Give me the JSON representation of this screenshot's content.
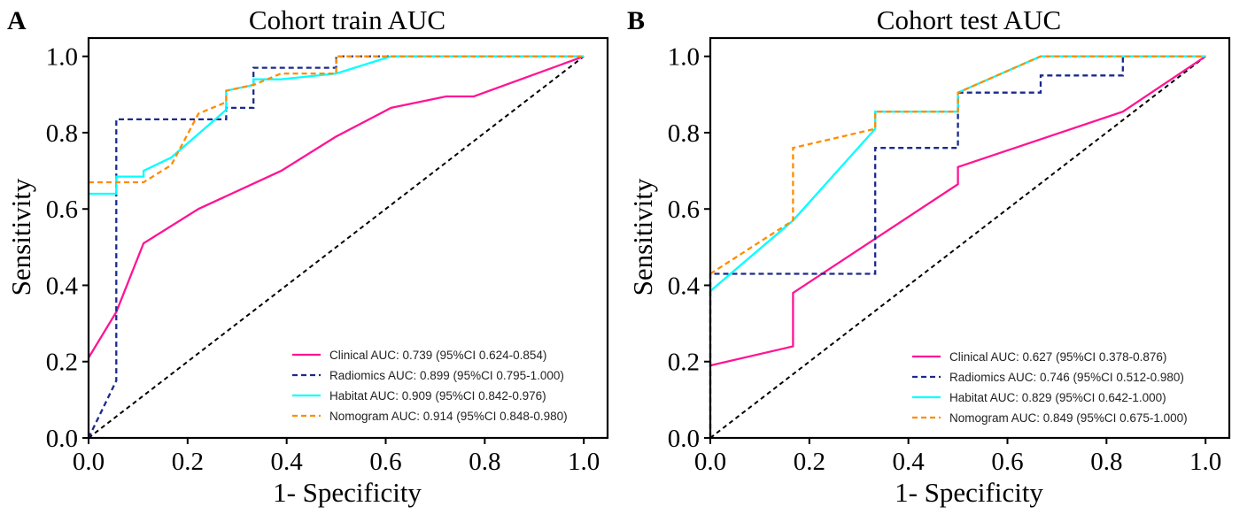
{
  "figure": {
    "panels": [
      {
        "letter": "A",
        "title": "Cohort train AUC",
        "xlabel": "1- Specificity",
        "ylabel": "Sensitivity"
      },
      {
        "letter": "B",
        "title": "Cohort test AUC",
        "xlabel": "1- Specificity",
        "ylabel": "Sensitivity"
      }
    ]
  },
  "chart_data": [
    {
      "type": "line",
      "title": "Cohort train AUC",
      "panel_letter": "A",
      "xlabel": "1- Specificity",
      "ylabel": "Sensitivity",
      "xlim": [
        0,
        1
      ],
      "ylim": [
        0,
        1
      ],
      "xticks": [
        "0.0",
        "0.2",
        "0.4",
        "0.6",
        "0.8",
        "1.0"
      ],
      "yticks": [
        "0.0",
        "0.2",
        "0.4",
        "0.6",
        "0.8",
        "1.0"
      ],
      "legend_position": "bottom-right",
      "reference_line": {
        "x": [
          0,
          1
        ],
        "y": [
          0,
          1
        ],
        "color": "#000000",
        "style": "dashed"
      },
      "series": [
        {
          "name": "Clinical AUC: 0.739 (95%CI 0.624-0.854)",
          "color": "#ff1493",
          "style": "solid",
          "x": [
            0,
            0.056,
            0.111,
            0.222,
            0.389,
            0.5,
            0.611,
            0.722,
            0.778,
            1.0
          ],
          "y": [
            0.21,
            0.33,
            0.51,
            0.6,
            0.7,
            0.79,
            0.865,
            0.895,
            0.895,
            1.0
          ]
        },
        {
          "name": "Radiomics AUC: 0.899 (95%CI 0.795-1.000)",
          "color": "#1a2a8c",
          "style": "dashed",
          "x": [
            0,
            0.056,
            0.056,
            0.278,
            0.278,
            0.333,
            0.333,
            0.5,
            0.5,
            1.0
          ],
          "y": [
            0,
            0.15,
            0.835,
            0.835,
            0.865,
            0.865,
            0.97,
            0.97,
            1.0,
            1.0
          ]
        },
        {
          "name": "Habitat AUC: 0.909 (95%CI 0.842-0.976)",
          "color": "#00ffff",
          "style": "solid",
          "x": [
            0,
            0.056,
            0.056,
            0.111,
            0.111,
            0.167,
            0.278,
            0.278,
            0.333,
            0.333,
            0.389,
            0.5,
            0.611,
            1.0
          ],
          "y": [
            0.64,
            0.64,
            0.685,
            0.685,
            0.7,
            0.735,
            0.86,
            0.91,
            0.925,
            0.94,
            0.94,
            0.955,
            1.0,
            1.0
          ]
        },
        {
          "name": "Nomogram AUC: 0.914 (95%CI 0.848-0.980)",
          "color": "#ff8c00",
          "style": "dashed",
          "x": [
            0,
            0.111,
            0.167,
            0.222,
            0.278,
            0.278,
            0.333,
            0.389,
            0.5,
            0.5,
            1.0
          ],
          "y": [
            0.67,
            0.67,
            0.715,
            0.85,
            0.88,
            0.91,
            0.925,
            0.955,
            0.955,
            1.0,
            1.0
          ]
        }
      ]
    },
    {
      "type": "line",
      "title": "Cohort test AUC",
      "panel_letter": "B",
      "xlabel": "1- Specificity",
      "ylabel": "Sensitivity",
      "xlim": [
        0,
        1
      ],
      "ylim": [
        0,
        1
      ],
      "xticks": [
        "0.0",
        "0.2",
        "0.4",
        "0.6",
        "0.8",
        "1.0"
      ],
      "yticks": [
        "0.0",
        "0.2",
        "0.4",
        "0.6",
        "0.8",
        "1.0"
      ],
      "legend_position": "bottom-right",
      "reference_line": {
        "x": [
          0,
          1
        ],
        "y": [
          0,
          1
        ],
        "color": "#000000",
        "style": "dashed"
      },
      "series": [
        {
          "name": "Clinical AUC: 0.627 (95%CI 0.378-0.876)",
          "color": "#ff1493",
          "style": "solid",
          "x": [
            0,
            0.167,
            0.167,
            0.5,
            0.5,
            0.833,
            1.0
          ],
          "y": [
            0.19,
            0.24,
            0.38,
            0.665,
            0.71,
            0.855,
            1.0
          ]
        },
        {
          "name": "Radiomics AUC: 0.746 (95%CI 0.512-0.980)",
          "color": "#1a2a8c",
          "style": "dashed",
          "x": [
            0,
            0,
            0.333,
            0.333,
            0.5,
            0.5,
            0.667,
            0.667,
            0.833,
            0.833,
            1.0
          ],
          "y": [
            0,
            0.43,
            0.43,
            0.76,
            0.76,
            0.905,
            0.905,
            0.95,
            0.95,
            1.0,
            1.0
          ]
        },
        {
          "name": "Habitat AUC: 0.829 (95%CI 0.642-1.000)",
          "color": "#00ffff",
          "style": "solid",
          "x": [
            0,
            0.167,
            0.333,
            0.333,
            0.5,
            0.5,
            0.667,
            1.0
          ],
          "y": [
            0.385,
            0.57,
            0.81,
            0.855,
            0.855,
            0.905,
            1.0,
            1.0
          ]
        },
        {
          "name": "Nomogram AUC: 0.849 (95%CI 0.675-1.000)",
          "color": "#ff8c00",
          "style": "dashed",
          "x": [
            0,
            0.167,
            0.167,
            0.333,
            0.333,
            0.5,
            0.5,
            0.667,
            1.0
          ],
          "y": [
            0.43,
            0.57,
            0.76,
            0.81,
            0.855,
            0.855,
            0.905,
            1.0,
            1.0
          ]
        }
      ]
    }
  ]
}
